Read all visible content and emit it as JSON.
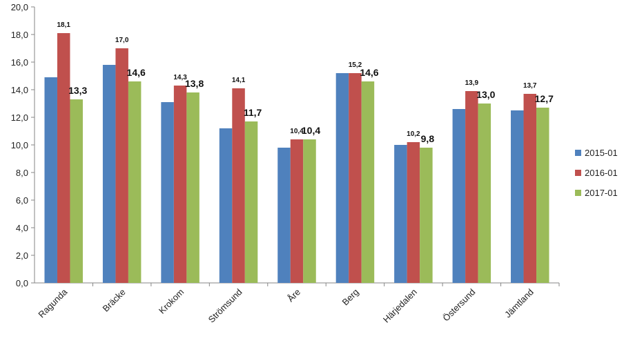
{
  "chart_data": {
    "type": "bar",
    "title": "",
    "xlabel": "",
    "ylabel": "",
    "ylim": [
      0,
      20
    ],
    "yticks": [
      "0,0",
      "2,0",
      "4,0",
      "6,0",
      "8,0",
      "10,0",
      "12,0",
      "14,0",
      "16,0",
      "18,0",
      "20,0"
    ],
    "grid": false,
    "legend_position": "right",
    "categories": [
      "Ragunda",
      "Bräcke",
      "Krokom",
      "Strömsund",
      "Åre",
      "Berg",
      "Härjedalen",
      "Östersund",
      "Jämtland"
    ],
    "series": [
      {
        "name": "2015-01",
        "color": "#4F81BD",
        "values": [
          14.9,
          15.8,
          13.1,
          11.2,
          9.8,
          15.2,
          10.0,
          12.6,
          12.5
        ],
        "labels": [
          "",
          "",
          "",
          "",
          "",
          "",
          "",
          "",
          ""
        ]
      },
      {
        "name": "2016-01",
        "color": "#C0504D",
        "values": [
          18.1,
          17.0,
          14.3,
          14.1,
          10.4,
          15.2,
          10.2,
          13.9,
          13.7
        ],
        "labels": [
          "18,1",
          "17,0",
          "14,3",
          "14,1",
          "10,4",
          "15,2",
          "10,2",
          "13,9",
          "13,7"
        ]
      },
      {
        "name": "2017-01",
        "color": "#9BBB59",
        "values": [
          13.3,
          14.6,
          13.8,
          11.7,
          10.4,
          14.6,
          9.8,
          13.0,
          12.7
        ],
        "labels": [
          "13,3",
          "14,6",
          "13,8",
          "11,7",
          "10,4",
          "14,6",
          "9,8",
          "13,0",
          "12,7"
        ]
      }
    ]
  }
}
